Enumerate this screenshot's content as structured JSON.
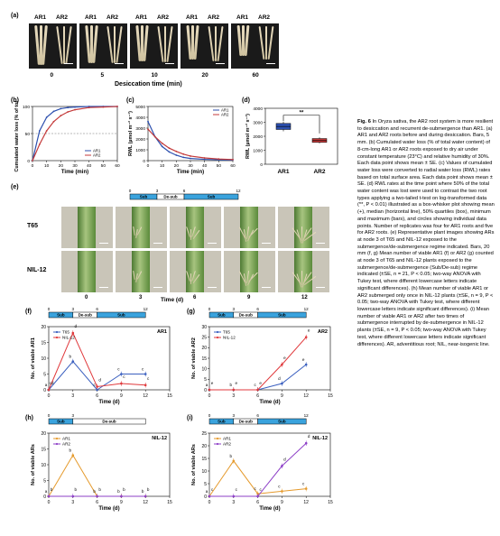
{
  "panel_a": {
    "label": "(a)",
    "ar_labels": [
      "AR1",
      "AR2"
    ],
    "times": [
      "0",
      "5",
      "10",
      "20",
      "60"
    ],
    "xlabel": "Desiccation time (min)"
  },
  "panel_b": {
    "label": "(b)",
    "ylabel": "Cumulated water loss (% of total)",
    "xlabel": "Time (min)",
    "legend": [
      "AR1",
      "AR2"
    ],
    "yticks": [
      "0",
      "50",
      "100"
    ],
    "xticks": [
      "0",
      "10",
      "20",
      "30",
      "40",
      "50",
      "60"
    ]
  },
  "panel_c": {
    "label": "(c)",
    "ylabel": "RWL (µmol m⁻² s⁻¹)",
    "xlabel": "Time (min)",
    "legend": [
      "AR1",
      "AR2"
    ],
    "yticks": [
      "0",
      "1000",
      "2000",
      "3000",
      "4000",
      "5000"
    ],
    "xticks": [
      "0",
      "10",
      "20",
      "30",
      "40",
      "50",
      "60"
    ]
  },
  "panel_d": {
    "label": "(d)",
    "ylabel": "RWL (µmol m⁻² s⁻¹)",
    "categories": [
      "AR1",
      "AR2"
    ],
    "yticks": [
      "0",
      "1000",
      "2000",
      "3000",
      "4000"
    ],
    "sig": "**"
  },
  "panel_e": {
    "label": "(e)",
    "rows": [
      "T65",
      "NIL-12"
    ],
    "times": [
      "0",
      "3",
      "6",
      "9",
      "12"
    ],
    "xlabel": "Time (d)",
    "bar_ticks": [
      "0",
      "3",
      "6",
      "12"
    ],
    "bar_labels": [
      "Sub",
      "De-sub",
      "Sub"
    ]
  },
  "panel_f": {
    "label": "(f)",
    "tag": "AR1",
    "ylabel": "No. of viable AR1",
    "xlabel": "Time (d)",
    "legend": [
      "T65",
      "NIL-12"
    ],
    "bar_labels": [
      "Sub",
      "De-sub",
      "Sub"
    ],
    "yticks": [
      "0",
      "5",
      "10",
      "15",
      "20"
    ],
    "xticks": [
      "0",
      "3",
      "6",
      "9",
      "12",
      "15"
    ],
    "top_ticks": [
      "0",
      "3",
      "6",
      "12"
    ],
    "letters": [
      "a",
      "b",
      "c",
      "c",
      "c",
      "cd",
      "d",
      "d",
      "c",
      "c"
    ]
  },
  "panel_g": {
    "label": "(g)",
    "tag": "AR2",
    "ylabel": "No. of viable AR2",
    "xlabel": "Time (d)",
    "legend": [
      "T65",
      "NIL-12"
    ],
    "bar_labels": [
      "Sub",
      "De-sub",
      "Sub"
    ],
    "yticks": [
      "0",
      "5",
      "10",
      "15",
      "20",
      "25",
      "30"
    ],
    "xticks": [
      "0",
      "3",
      "6",
      "9",
      "12",
      "15"
    ],
    "top_ticks": [
      "0",
      "3",
      "6",
      "12"
    ],
    "letters": [
      "a",
      "b",
      "c",
      "d",
      "e",
      "e",
      "e",
      "e",
      "e",
      "e"
    ]
  },
  "panel_h": {
    "label": "(h)",
    "tag": "NIL-12",
    "ylabel": "No. of viable ARs",
    "xlabel": "Time (d)",
    "legend": [
      "AR1",
      "AR2"
    ],
    "bar_labels": [
      "Sub",
      "De-sub"
    ],
    "yticks": [
      "0",
      "5",
      "10",
      "15",
      "20"
    ],
    "xticks": [
      "0",
      "3",
      "6",
      "9",
      "12",
      "15"
    ],
    "top_ticks": [
      "0",
      "3"
    ],
    "letters": [
      "a",
      "b",
      "b",
      "b",
      "b",
      "b",
      "b",
      "b",
      "b",
      "b"
    ]
  },
  "panel_i": {
    "label": "(i)",
    "tag": "NIL-12",
    "ylabel": "No. of viable ARs",
    "xlabel": "Time (d)",
    "legend": [
      "AR1",
      "AR2"
    ],
    "bar_labels": [
      "Sub",
      "De-sub",
      "Sub"
    ],
    "yticks": [
      "0",
      "5",
      "10",
      "15",
      "20",
      "25"
    ],
    "xticks": [
      "0",
      "3",
      "6",
      "9",
      "12",
      "15"
    ],
    "top_ticks": [
      "0",
      "3",
      "6",
      "12"
    ],
    "letters": [
      "a",
      "b",
      "c",
      "c",
      "c",
      "c",
      "c",
      "c",
      "d",
      "d"
    ]
  },
  "colors": {
    "ar1_line": "#2c4fae",
    "ar2_line": "#c43a3a",
    "t65": "#3a5fbf",
    "nil12": "#e0393c",
    "h_ar1": "#e59a2c",
    "h_ar2": "#8d3fc7",
    "sub_bar": "#3aa3dd"
  },
  "chart_data": [
    {
      "type": "line",
      "panel": "b",
      "x": [
        0,
        5,
        10,
        15,
        20,
        25,
        30,
        40,
        50,
        60
      ],
      "series": [
        {
          "name": "AR1",
          "values": [
            0,
            55,
            80,
            91,
            96,
            98,
            99,
            100,
            100,
            100
          ]
        },
        {
          "name": "AR2",
          "values": [
            0,
            30,
            55,
            72,
            83,
            90,
            94,
            98,
            99,
            100
          ]
        }
      ],
      "xlabel": "Time (min)",
      "ylabel": "Cumulated water loss (% of total)",
      "ylim": [
        0,
        100
      ]
    },
    {
      "type": "line",
      "panel": "c",
      "x": [
        0,
        5,
        10,
        15,
        20,
        25,
        30,
        40,
        50,
        60
      ],
      "series": [
        {
          "name": "AR1",
          "values": [
            3600,
            2200,
            1300,
            800,
            500,
            300,
            200,
            120,
            80,
            60
          ]
        },
        {
          "name": "AR2",
          "values": [
            2900,
            2200,
            1600,
            1150,
            850,
            600,
            420,
            250,
            150,
            100
          ]
        }
      ],
      "xlabel": "Time (min)",
      "ylabel": "RWL (µmol m⁻² s⁻¹)",
      "ylim": [
        0,
        5000
      ]
    },
    {
      "type": "box",
      "panel": "d",
      "categories": [
        "AR1",
        "AR2"
      ],
      "values": [
        2700,
        1700
      ],
      "ylabel": "RWL (µmol m⁻² s⁻¹)",
      "ylim": [
        0,
        4000
      ]
    },
    {
      "type": "line",
      "panel": "f",
      "x": [
        0,
        3,
        6,
        9,
        12
      ],
      "series": [
        {
          "name": "T65",
          "values": [
            0,
            9,
            0,
            5,
            5
          ]
        },
        {
          "name": "NIL-12",
          "values": [
            0,
            18,
            1,
            2,
            1.5
          ]
        }
      ],
      "xlabel": "Time (d)",
      "ylabel": "No. of viable AR1",
      "ylim": [
        0,
        20
      ]
    },
    {
      "type": "line",
      "panel": "g",
      "x": [
        0,
        3,
        6,
        9,
        12
      ],
      "series": [
        {
          "name": "T65",
          "values": [
            0,
            0,
            0,
            3,
            12
          ]
        },
        {
          "name": "NIL-12",
          "values": [
            0,
            0,
            0,
            12,
            25
          ]
        }
      ],
      "xlabel": "Time (d)",
      "ylabel": "No. of viable AR2",
      "ylim": [
        0,
        30
      ]
    },
    {
      "type": "line",
      "panel": "h",
      "x": [
        0,
        3,
        6,
        9,
        12
      ],
      "series": [
        {
          "name": "AR1",
          "values": [
            0,
            13,
            0,
            0,
            0
          ]
        },
        {
          "name": "AR2",
          "values": [
            0,
            0,
            0,
            0,
            0
          ]
        }
      ],
      "xlabel": "Time (d)",
      "ylabel": "No. of viable ARs",
      "ylim": [
        0,
        20
      ]
    },
    {
      "type": "line",
      "panel": "i",
      "x": [
        0,
        3,
        6,
        9,
        12
      ],
      "series": [
        {
          "name": "AR1",
          "values": [
            0,
            14,
            1,
            2,
            3
          ]
        },
        {
          "name": "AR2",
          "values": [
            0,
            0,
            0,
            12,
            21
          ]
        }
      ],
      "xlabel": "Time (d)",
      "ylabel": "No. of viable ARs",
      "ylim": [
        0,
        25
      ]
    }
  ],
  "caption": {
    "fig": "Fig. 6",
    "text": " In Oryza sativa, the AR2 root system is more resilient to desiccation and recurrent de-submergence than AR1. (a) AR1 and AR2 roots before and during desiccation. Bars, 5 mm. (b) Cumulated water loss (% of total water content) of 8-cm-long AR1 or AR2 roots exposed to dry air under constant temperature (23°C) and relative humidity of 30%. Each data point shows mean ± SE. (c) Values of cumulated water loss were converted to radial water loss (RWL) rates based on total surface area. Each data point shows mean ± SE. (d) RWL rates at the time point where 50% of the total water content was lost were used to contrast the two root types applying a two-tailed t-test on log-transformed data (**, P < 0.01) illustrated as a box-whisker plot showing mean (+), median (horizontal line), 50% quartiles (box), minimum and maximum (bars), and circles showing individual data points. Number of replicates was four for AR1 roots and five for AR2 roots. (e) Representative plant images showing ARs at node 3 of T65 and NIL-12 exposed to the submergence/de-submergence regime indicated. Bars, 20 mm (f, g) Mean number of viable AR1 (f) or AR2 (g) counted at node 3 of T65 and NIL-12 plants exposed to the submergence/de-submergence (Sub/De-sub) regime indicated (±SE, n = 21, P < 0.05; two-way ANOVA with Tukey test, where different lowercase letters indicate significant differences). (h) Mean number of viable AR1 or AR2 submerged only once in NIL-12 plants (±SE, n = 9, P < 0.05; two-way ANOVA with Tukey test, where different lowercase letters indicate significant differences). (i) Mean number of viable AR1 or AR2 after two times of submergence interrupted by de-submergence in NIL-12 plants (±SE, n = 9, P < 0.05; two-way ANOVA with Tukey test, where different lowercase letters indicate significant differences). AR, adventitious root; NIL, near-isogenic line."
  }
}
